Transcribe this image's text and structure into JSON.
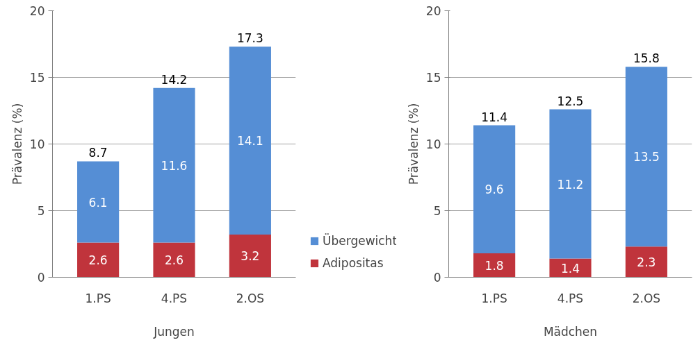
{
  "chart_data": [
    {
      "type": "bar",
      "stacked": true,
      "xlabel": "Jungen",
      "ylabel": "Prävalenz (%)",
      "categories": [
        "1.PS",
        "4.PS",
        "2.OS"
      ],
      "ylim": [
        0,
        20
      ],
      "yticks": [
        0,
        5,
        10,
        15,
        20
      ],
      "grid": "y",
      "data_labels": true,
      "legend": "right",
      "totals": [
        "8.7",
        "14.2",
        "17.3"
      ],
      "series": [
        {
          "name": "Adipositas",
          "color": "#c0343c",
          "values": [
            2.6,
            2.6,
            3.2
          ]
        },
        {
          "name": "Übergewicht",
          "color": "#558ed5",
          "values": [
            6.1,
            11.6,
            14.1
          ]
        }
      ]
    },
    {
      "type": "bar",
      "stacked": true,
      "xlabel": "Mädchen",
      "ylabel": "Prävalenz (%)",
      "categories": [
        "1.PS",
        "4.PS",
        "2.OS"
      ],
      "ylim": [
        0,
        20
      ],
      "yticks": [
        0,
        5,
        10,
        15,
        20
      ],
      "grid": "y",
      "data_labels": true,
      "totals": [
        "11.4",
        "12.5",
        "15.8"
      ],
      "series": [
        {
          "color": "#c0343c",
          "values": [
            1.8,
            1.4,
            2.3
          ]
        },
        {
          "color": "#558ed5",
          "values": [
            9.6,
            11.2,
            13.5
          ]
        }
      ]
    }
  ]
}
